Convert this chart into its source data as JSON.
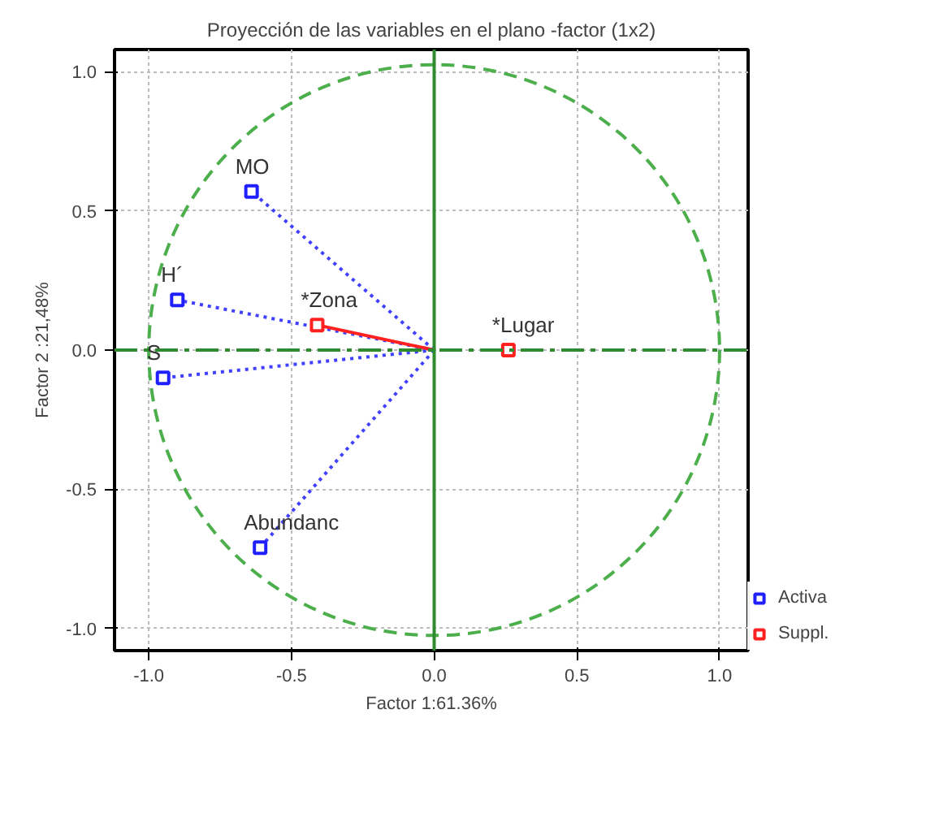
{
  "chart_data": {
    "type": "scatter",
    "title": "Proyección de las variables en el plano -factor (1x2)",
    "xlabel": "Factor 1:61.36%",
    "ylabel": "Factor 2 :21,48%",
    "xlim": [
      -1.12,
      1.1
    ],
    "ylim": [
      -1.08,
      1.08
    ],
    "xticks": [
      {
        "value": -1,
        "label": "-1.0"
      },
      {
        "value": -0.5,
        "label": "-0.5"
      },
      {
        "value": 0,
        "label": "0.0"
      },
      {
        "value": 0.5,
        "label": "0.5"
      },
      {
        "value": 1,
        "label": "1.0"
      }
    ],
    "yticks": [
      {
        "value": -1,
        "label": "-1.0"
      },
      {
        "value": -0.5,
        "label": "-0.5"
      },
      {
        "value": 0,
        "label": "0.0"
      },
      {
        "value": 0.5,
        "label": "0.5"
      },
      {
        "value": 1,
        "label": "1.0"
      }
    ],
    "grid": true,
    "legend": "bottom right",
    "series": [
      {
        "type": "line",
        "color": "#4040ff",
        "line_style": "dotted",
        "x": [
          0,
          -0.64
        ],
        "values": [
          0,
          0.57
        ]
      },
      {
        "type": "line",
        "color": "#4040ff",
        "line_style": "dotted",
        "x": [
          0,
          -0.9
        ],
        "values": [
          0,
          0.18
        ]
      },
      {
        "type": "line",
        "color": "#4040ff",
        "line_style": "dotted",
        "x": [
          0,
          -0.95
        ],
        "values": [
          0,
          -0.1
        ]
      },
      {
        "type": "line",
        "color": "#4040ff",
        "line_style": "dotted",
        "x": [
          0,
          -0.61
        ],
        "values": [
          0,
          -0.71
        ]
      },
      {
        "type": "line",
        "color": "#ff2020",
        "line_style": "solid",
        "x": [
          0,
          -0.41
        ],
        "values": [
          0,
          0.09
        ]
      },
      {
        "name": "Activa",
        "color": "#2020ff",
        "marker": "square",
        "x": [
          -0.64,
          -0.9,
          -0.95,
          -0.61
        ],
        "values": [
          0.57,
          0.18,
          -0.1,
          -0.71
        ]
      },
      {
        "name": "Suppl.",
        "color": "#ff2020",
        "marker": "square",
        "x": [
          -0.41,
          0.26
        ],
        "values": [
          0.09,
          0.0
        ]
      }
    ],
    "ref_lines": [
      {
        "axis": "x",
        "value": 0,
        "color": "#2e8b2e",
        "line_style": "solid"
      },
      {
        "axis": "y",
        "value": 0,
        "color": "#2e8b2e",
        "line_style": "dashed"
      }
    ],
    "annotations": [
      {
        "text": "MO",
        "x": -0.64,
        "y": 0.57
      },
      {
        "text": "H´",
        "x": -0.9,
        "y": 0.18
      },
      {
        "text": "S",
        "x": -0.95,
        "y": -0.1
      },
      {
        "text": "Abundanc",
        "x": -0.61,
        "y": -0.71
      },
      {
        "text": "*Zona",
        "x": -0.41,
        "y": 0.09
      },
      {
        "text": "*Lugar",
        "x": 0.26,
        "y": 0.0
      }
    ]
  }
}
